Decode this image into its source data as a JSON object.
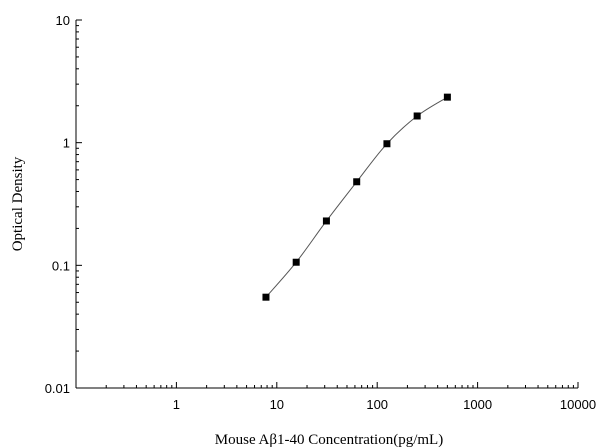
{
  "chart_data": {
    "type": "scatter",
    "xlabel": "Mouse Aβ1-40 Concentration(pg/mL)",
    "ylabel": "Optical Density",
    "x_scale": "log",
    "y_scale": "log",
    "xlim": [
      0.1,
      10000
    ],
    "ylim": [
      0.01,
      10
    ],
    "x_ticks": [
      "1",
      "10",
      "100",
      "1000",
      "10000"
    ],
    "x_tick_values": [
      1,
      10,
      100,
      1000,
      10000
    ],
    "y_ticks": [
      "0.01",
      "0.1",
      "1",
      "10"
    ],
    "y_tick_values": [
      0.01,
      0.1,
      1,
      10
    ],
    "grid": false,
    "legend": "none",
    "series": [
      {
        "x": [
          7.8,
          15.6,
          31.2,
          62.5,
          125,
          250,
          500
        ],
        "y": [
          0.055,
          0.106,
          0.23,
          0.48,
          0.98,
          1.65,
          2.35
        ],
        "marker": "square",
        "fit_curve": true
      }
    ],
    "colors": {
      "marker": "#000000",
      "curve": "#555555",
      "axis": "#000000"
    }
  }
}
